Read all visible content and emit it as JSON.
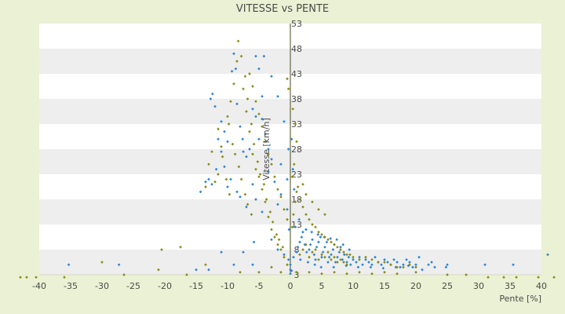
{
  "chart_data": {
    "type": "scatter",
    "title": "VITESSE vs PENTE",
    "xlabel": "Pente [%]",
    "ylabel": "Vitesse [km/h]",
    "xlim": [
      -40,
      40
    ],
    "ylim": [
      3,
      53
    ],
    "x_ticks": [
      -40,
      -35,
      -30,
      -25,
      -20,
      -15,
      -10,
      -5,
      0,
      5,
      10,
      15,
      20,
      25,
      30,
      35,
      40
    ],
    "y_ticks": [
      3,
      8,
      13,
      18,
      23,
      28,
      33,
      38,
      43,
      48,
      53
    ],
    "grid": "horizontal alternating bands",
    "legend": "none",
    "colors": {
      "background": "#ebf1d4",
      "plot_area": "#ffffff",
      "band": "#eeeeee",
      "axis": "#4a4a1a",
      "series_a": "#2e86d4",
      "series_b": "#8b8b1a"
    },
    "series": [
      {
        "color": "#2e86d4",
        "points": [
          [
            -35.3,
            5.0
          ],
          [
            -27.3,
            5.0
          ],
          [
            -15.0,
            4.0
          ],
          [
            -12.7,
            38.0
          ],
          [
            -12.4,
            39.0
          ],
          [
            -12.0,
            36.5
          ],
          [
            -11.5,
            30.0
          ],
          [
            -11.0,
            27.5
          ],
          [
            -10.5,
            24.5
          ],
          [
            -12.5,
            21.0
          ],
          [
            -13.5,
            21.5
          ],
          [
            -14.3,
            19.5
          ],
          [
            -13.0,
            22.0
          ],
          [
            -9.0,
            47.0
          ],
          [
            -8.7,
            44.0
          ],
          [
            -9.3,
            43.5
          ],
          [
            -8.5,
            37.0
          ],
          [
            -8.0,
            32.5
          ],
          [
            -7.6,
            30.0
          ],
          [
            -7.5,
            27.5
          ],
          [
            -7.0,
            26.5
          ],
          [
            -9.5,
            22.0
          ],
          [
            -10.0,
            20.5
          ],
          [
            -8.5,
            19.5
          ],
          [
            -8.0,
            18.5
          ],
          [
            -7.0,
            16.5
          ],
          [
            -5.5,
            46.5
          ],
          [
            -5.0,
            44.0
          ],
          [
            -4.5,
            38.5
          ],
          [
            -4.5,
            34.0
          ],
          [
            -4.0,
            31.0
          ],
          [
            -3.5,
            28.0
          ],
          [
            -3.0,
            26.0
          ],
          [
            -3.5,
            23.5
          ],
          [
            -2.5,
            21.5
          ],
          [
            -1.5,
            19.0
          ],
          [
            -0.5,
            16.0
          ],
          [
            -0.2,
            12.0
          ],
          [
            -4.2,
            46.5
          ],
          [
            -3.0,
            42.5
          ],
          [
            -2.0,
            38.5
          ],
          [
            -1.0,
            33.5
          ],
          [
            -0.3,
            28.0
          ],
          [
            -6.0,
            36.0
          ],
          [
            -5.5,
            34.5
          ],
          [
            -5.0,
            30.0
          ],
          [
            -6.5,
            28.0
          ],
          [
            -11.0,
            33.5
          ],
          [
            -10.0,
            29.5
          ],
          [
            -6.0,
            21.0
          ],
          [
            -5.5,
            18.0
          ],
          [
            -4.5,
            15.5
          ],
          [
            -3.0,
            10.0
          ],
          [
            -5.8,
            9.5
          ],
          [
            -7.5,
            7.5
          ],
          [
            -11.0,
            7.5
          ],
          [
            -13.0,
            4.0
          ],
          [
            -9.0,
            5.0
          ],
          [
            -6.0,
            5.0
          ],
          [
            -2.0,
            8.0
          ],
          [
            -1.0,
            7.0
          ],
          [
            -0.3,
            6.0
          ],
          [
            0.0,
            5.0
          ],
          [
            0.0,
            4.0
          ],
          [
            0.2,
            3.8
          ],
          [
            0.0,
            3.2
          ],
          [
            0.5,
            6.5
          ],
          [
            1.0,
            7.5
          ],
          [
            1.2,
            8.5
          ],
          [
            1.5,
            9.5
          ],
          [
            1.8,
            10.5
          ],
          [
            2.0,
            11.5
          ],
          [
            2.3,
            9.0
          ],
          [
            2.6,
            7.5
          ],
          [
            3.0,
            8.0
          ],
          [
            3.2,
            9.0
          ],
          [
            3.5,
            10.0
          ],
          [
            3.8,
            7.0
          ],
          [
            4.0,
            6.0
          ],
          [
            4.2,
            8.5
          ],
          [
            4.5,
            9.5
          ],
          [
            4.8,
            10.5
          ],
          [
            5.0,
            6.5
          ],
          [
            5.2,
            7.5
          ],
          [
            5.5,
            8.5
          ],
          [
            5.8,
            9.5
          ],
          [
            6.0,
            5.5
          ],
          [
            6.2,
            6.5
          ],
          [
            6.5,
            7.0
          ],
          [
            6.8,
            8.0
          ],
          [
            7.0,
            9.0
          ],
          [
            7.2,
            5.5
          ],
          [
            7.5,
            6.5
          ],
          [
            7.8,
            7.5
          ],
          [
            8.0,
            8.5
          ],
          [
            8.3,
            6.0
          ],
          [
            8.6,
            7.0
          ],
          [
            9.0,
            5.5
          ],
          [
            9.3,
            6.5
          ],
          [
            9.6,
            5.0
          ],
          [
            10.0,
            6.0
          ],
          [
            10.5,
            5.5
          ],
          [
            11.0,
            6.5
          ],
          [
            11.5,
            5.0
          ],
          [
            12.0,
            6.0
          ],
          [
            12.5,
            5.5
          ],
          [
            13.0,
            5.0
          ],
          [
            13.5,
            6.5
          ],
          [
            14.0,
            5.5
          ],
          [
            14.5,
            5.0
          ],
          [
            15.0,
            6.0
          ],
          [
            15.5,
            5.5
          ],
          [
            16.0,
            5.0
          ],
          [
            16.5,
            6.0
          ],
          [
            17.0,
            5.5
          ],
          [
            17.5,
            4.5
          ],
          [
            18.0,
            5.0
          ],
          [
            18.5,
            6.0
          ],
          [
            19.0,
            5.5
          ],
          [
            19.5,
            4.5
          ],
          [
            20.0,
            5.0
          ],
          [
            21.0,
            4.0
          ],
          [
            22.0,
            5.0
          ],
          [
            23.0,
            4.5
          ],
          [
            25.0,
            5.0
          ],
          [
            31.0,
            5.0
          ],
          [
            35.5,
            5.0
          ],
          [
            41.0,
            7.0
          ],
          [
            2.5,
            12.0
          ],
          [
            3.4,
            11.5
          ],
          [
            4.4,
            11.0
          ],
          [
            5.4,
            10.5
          ],
          [
            6.4,
            10.2
          ],
          [
            7.4,
            10.0
          ],
          [
            8.4,
            9.0
          ],
          [
            9.4,
            8.0
          ],
          [
            1.6,
            6.0
          ],
          [
            2.8,
            5.5
          ],
          [
            3.9,
            5.0
          ],
          [
            4.9,
            4.5
          ],
          [
            6.9,
            4.5
          ],
          [
            8.9,
            4.8
          ],
          [
            10.8,
            4.5
          ],
          [
            12.8,
            4.5
          ],
          [
            14.8,
            4.3
          ],
          [
            16.8,
            4.5
          ],
          [
            18.8,
            4.8
          ],
          [
            20.5,
            6.5
          ],
          [
            22.5,
            5.5
          ],
          [
            24.8,
            4.5
          ],
          [
            0.8,
            12.5
          ],
          [
            1.4,
            14.0
          ],
          [
            0.6,
            20.0
          ],
          [
            0.4,
            24.0
          ],
          [
            0.2,
            30.0
          ],
          [
            -0.5,
            22.0
          ],
          [
            -1.5,
            25.0
          ],
          [
            -2.0,
            17.0
          ],
          [
            -10.5,
            31.5
          ],
          [
            -11.8,
            24.0
          ]
        ]
      },
      {
        "color": "#8b8b1a",
        "points": [
          [
            -43.0,
            2.5
          ],
          [
            -42.0,
            2.5
          ],
          [
            -40.5,
            2.5
          ],
          [
            -36.0,
            2.5
          ],
          [
            -30.0,
            5.5
          ],
          [
            -26.5,
            3.0
          ],
          [
            -21.0,
            4.0
          ],
          [
            -20.5,
            8.0
          ],
          [
            -17.5,
            8.5
          ],
          [
            -16.5,
            3.0
          ],
          [
            -13.5,
            5.0
          ],
          [
            -12.0,
            21.5
          ],
          [
            -11.5,
            23.0
          ],
          [
            -11.0,
            28.5
          ],
          [
            -10.0,
            34.5
          ],
          [
            -9.5,
            37.5
          ],
          [
            -9.0,
            41.0
          ],
          [
            -8.5,
            45.5
          ],
          [
            -8.3,
            49.5
          ],
          [
            -7.5,
            40.0
          ],
          [
            -7.0,
            35.5
          ],
          [
            -6.5,
            31.5
          ],
          [
            -6.0,
            27.0
          ],
          [
            -5.5,
            24.0
          ],
          [
            -5.0,
            22.5
          ],
          [
            -4.5,
            20.0
          ],
          [
            -4.0,
            17.5
          ],
          [
            -3.5,
            14.5
          ],
          [
            -3.0,
            12.0
          ],
          [
            -2.5,
            10.5
          ],
          [
            -2.0,
            9.0
          ],
          [
            -1.5,
            8.0
          ],
          [
            -1.0,
            6.5
          ],
          [
            -0.5,
            5.0
          ],
          [
            -6.5,
            43.0
          ],
          [
            -6.0,
            40.5
          ],
          [
            -5.5,
            37.5
          ],
          [
            -5.0,
            35.0
          ],
          [
            -4.5,
            32.5
          ],
          [
            -4.0,
            29.5
          ],
          [
            -3.5,
            27.0
          ],
          [
            -3.0,
            25.0
          ],
          [
            -2.5,
            22.5
          ],
          [
            -2.0,
            20.0
          ],
          [
            -1.5,
            18.5
          ],
          [
            -1.0,
            16.0
          ],
          [
            -0.5,
            14.0
          ],
          [
            -7.8,
            46.5
          ],
          [
            -7.2,
            42.5
          ],
          [
            -6.8,
            38.0
          ],
          [
            -6.2,
            33.0
          ],
          [
            -5.8,
            29.0
          ],
          [
            -5.2,
            25.5
          ],
          [
            -4.8,
            23.0
          ],
          [
            -4.2,
            21.0
          ],
          [
            -3.8,
            18.0
          ],
          [
            -3.2,
            15.5
          ],
          [
            -2.8,
            13.5
          ],
          [
            -2.2,
            11.0
          ],
          [
            -1.8,
            10.0
          ],
          [
            -1.2,
            8.5
          ],
          [
            -9.8,
            33.0
          ],
          [
            -9.2,
            29.0
          ],
          [
            -8.8,
            27.0
          ],
          [
            -8.2,
            24.5
          ],
          [
            -7.8,
            22.0
          ],
          [
            -7.2,
            19.0
          ],
          [
            -6.8,
            17.0
          ],
          [
            -6.2,
            15.0
          ],
          [
            -10.8,
            26.5
          ],
          [
            -10.2,
            22.0
          ],
          [
            -9.7,
            19.0
          ],
          [
            -11.5,
            32.0
          ],
          [
            -12.5,
            27.5
          ],
          [
            -13.0,
            25.0
          ],
          [
            -13.5,
            20.5
          ],
          [
            -8.0,
            3.5
          ],
          [
            -5.0,
            3.5
          ],
          [
            -3.0,
            4.5
          ],
          [
            -1.5,
            3.5
          ],
          [
            0.3,
            12.5
          ],
          [
            0.5,
            15.0
          ],
          [
            0.8,
            17.5
          ],
          [
            1.0,
            19.5
          ],
          [
            1.2,
            20.5
          ],
          [
            1.5,
            18.0
          ],
          [
            2.0,
            16.5
          ],
          [
            2.5,
            15.0
          ],
          [
            3.0,
            14.0
          ],
          [
            3.5,
            13.0
          ],
          [
            4.0,
            12.5
          ],
          [
            4.5,
            11.5
          ],
          [
            5.0,
            11.0
          ],
          [
            5.5,
            10.5
          ],
          [
            6.0,
            10.0
          ],
          [
            6.5,
            9.5
          ],
          [
            7.0,
            9.0
          ],
          [
            7.5,
            8.5
          ],
          [
            8.0,
            8.0
          ],
          [
            8.5,
            7.5
          ],
          [
            9.0,
            7.0
          ],
          [
            9.5,
            7.0
          ],
          [
            10.0,
            6.5
          ],
          [
            11.0,
            6.0
          ],
          [
            12.0,
            6.5
          ],
          [
            13.0,
            6.0
          ],
          [
            14.0,
            5.5
          ],
          [
            15.0,
            5.5
          ],
          [
            16.0,
            5.0
          ],
          [
            17.0,
            4.5
          ],
          [
            18.0,
            4.5
          ],
          [
            19.0,
            5.0
          ],
          [
            20.0,
            4.5
          ],
          [
            1.5,
            7.0
          ],
          [
            2.0,
            8.0
          ],
          [
            2.5,
            9.0
          ],
          [
            3.0,
            6.5
          ],
          [
            3.5,
            7.5
          ],
          [
            4.0,
            8.0
          ],
          [
            4.5,
            6.0
          ],
          [
            5.0,
            7.0
          ],
          [
            5.5,
            6.5
          ],
          [
            6.0,
            7.5
          ],
          [
            6.5,
            6.0
          ],
          [
            7.0,
            6.5
          ],
          [
            7.5,
            5.5
          ],
          [
            8.0,
            6.0
          ],
          [
            8.5,
            5.5
          ],
          [
            9.0,
            5.0
          ],
          [
            1.0,
            3.5
          ],
          [
            3.0,
            3.5
          ],
          [
            5.0,
            3.2
          ],
          [
            7.0,
            3.5
          ],
          [
            9.0,
            3.2
          ],
          [
            11.0,
            3.5
          ],
          [
            13.0,
            3.2
          ],
          [
            15.0,
            3.5
          ],
          [
            17.0,
            3.2
          ],
          [
            20.0,
            3.5
          ],
          [
            25.0,
            3.0
          ],
          [
            28.0,
            3.0
          ],
          [
            31.5,
            2.5
          ],
          [
            34.0,
            2.5
          ],
          [
            36.0,
            2.5
          ],
          [
            39.5,
            2.5
          ],
          [
            42.0,
            2.5
          ],
          [
            0.3,
            22.5
          ],
          [
            0.6,
            25.0
          ],
          [
            1.0,
            29.5
          ],
          [
            0.8,
            33.0
          ],
          [
            0.4,
            36.0
          ],
          [
            2.0,
            21.0
          ],
          [
            2.5,
            19.0
          ],
          [
            3.5,
            17.5
          ],
          [
            4.5,
            16.0
          ],
          [
            5.5,
            15.0
          ],
          [
            -0.3,
            40.0
          ],
          [
            -0.5,
            42.0
          ]
        ]
      }
    ]
  }
}
